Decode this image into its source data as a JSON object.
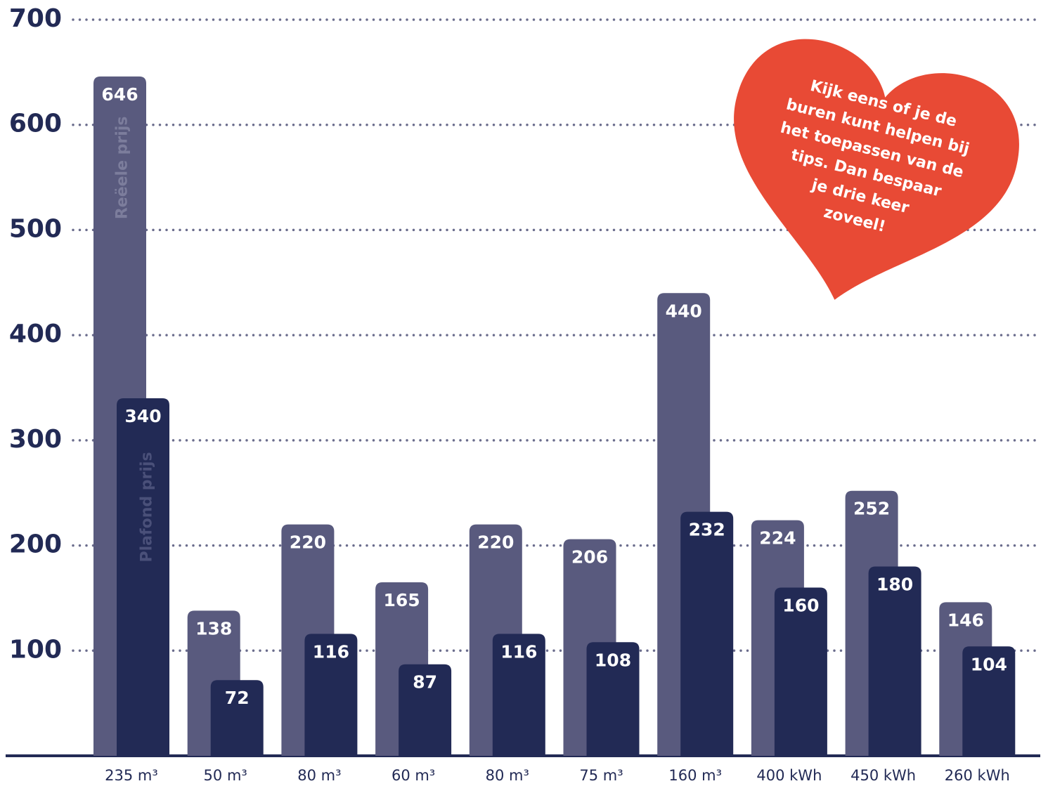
{
  "chart_data": {
    "type": "bar",
    "categories": [
      "235 m³",
      "50 m³",
      "80 m³",
      "60 m³",
      "80 m³",
      "75 m³",
      "160 m³",
      "400 kWh",
      "450 kWh",
      "260 kWh"
    ],
    "series": [
      {
        "name": "Reëele prijs",
        "color": "#595a7e",
        "values": [
          646,
          138,
          220,
          165,
          220,
          206,
          440,
          224,
          252,
          146
        ]
      },
      {
        "name": "Plafond prijs",
        "color": "#222a55",
        "values": [
          340,
          72,
          116,
          87,
          116,
          108,
          232,
          160,
          180,
          104
        ]
      }
    ],
    "ylim": [
      0,
      700
    ],
    "yticks": [
      100,
      200,
      300,
      400,
      500,
      600,
      700
    ],
    "grid": true,
    "annotation": [
      "Kijk eens of je de",
      "buren kunt helpen bij",
      "het toepassen van de",
      "tips. Dan bespaar",
      "je drie keer",
      "zoveel!"
    ]
  }
}
